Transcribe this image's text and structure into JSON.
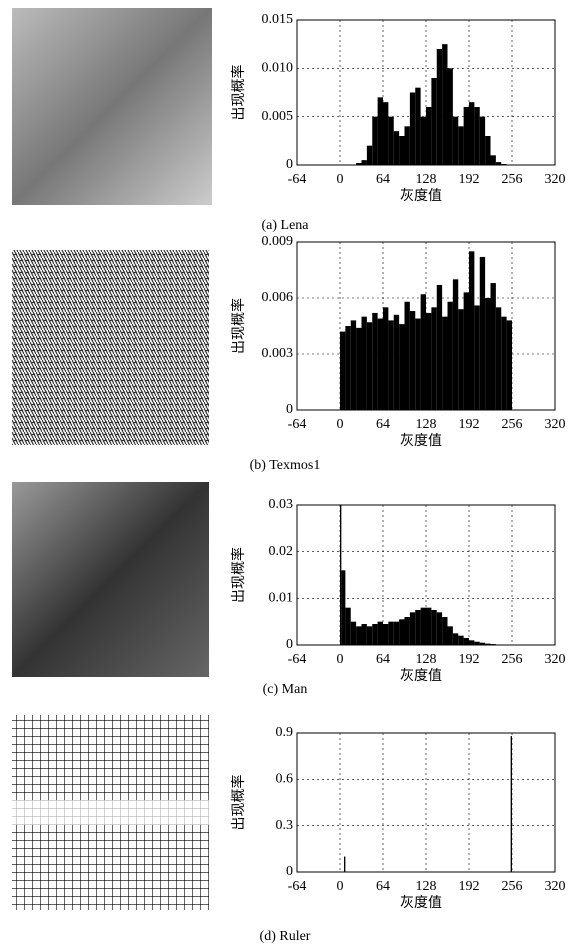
{
  "chart_data": [
    {
      "type": "histogram",
      "title": "(a) Lena",
      "xlabel": "灰度值",
      "ylabel": "出现概率",
      "color": "#000000",
      "grid": true,
      "xlim": [
        -64,
        320
      ],
      "xticks": [
        -64,
        0,
        64,
        128,
        192,
        256,
        320
      ],
      "ylim": [
        0,
        0.015
      ],
      "yticks": [
        0,
        0.005,
        {
          "value": 0.01,
          "label": "0.010"
        },
        0.015
      ],
      "bins": [
        24,
        32,
        40,
        48,
        56,
        64,
        72,
        80,
        88,
        96,
        104,
        112,
        120,
        128,
        136,
        144,
        152,
        160,
        168,
        176,
        184,
        192,
        200,
        208,
        216,
        224,
        232,
        240,
        248
      ],
      "counts": [
        0.0002,
        0.0005,
        0.002,
        0.005,
        0.007,
        0.0065,
        0.005,
        0.0035,
        0.003,
        0.004,
        0.0075,
        0.008,
        0.005,
        0.006,
        0.009,
        0.012,
        0.0125,
        0.01,
        0.005,
        0.004,
        0.006,
        0.0065,
        0.006,
        0.005,
        0.003,
        0.001,
        0.0003,
        0.0001
      ]
    },
    {
      "type": "histogram",
      "title": "(b) Texmos1",
      "xlabel": "灰度值",
      "ylabel": "出现概率",
      "color": "#000000",
      "grid": true,
      "xlim": [
        -64,
        320
      ],
      "xticks": [
        -64,
        0,
        64,
        128,
        192,
        256,
        320
      ],
      "ylim": [
        0,
        0.009
      ],
      "yticks": [
        0,
        0.003,
        0.006,
        0.009
      ],
      "bins": [
        0,
        8,
        16,
        24,
        32,
        40,
        48,
        56,
        64,
        72,
        80,
        88,
        96,
        104,
        112,
        120,
        128,
        136,
        144,
        152,
        160,
        168,
        176,
        184,
        192,
        200,
        208,
        216,
        224,
        232,
        240,
        248,
        256
      ],
      "counts": [
        0.0042,
        0.0045,
        0.0048,
        0.0044,
        0.005,
        0.0047,
        0.0052,
        0.0049,
        0.0055,
        0.0048,
        0.0051,
        0.0046,
        0.0058,
        0.0053,
        0.0049,
        0.0062,
        0.0052,
        0.0055,
        0.0067,
        0.005,
        0.0058,
        0.007,
        0.0054,
        0.0063,
        0.0085,
        0.0056,
        0.0082,
        0.006,
        0.0068,
        0.0055,
        0.005,
        0.0048
      ]
    },
    {
      "type": "histogram",
      "title": "(c) Man",
      "xlabel": "灰度值",
      "ylabel": "出现概率",
      "color": "#000000",
      "grid": true,
      "xlim": [
        -64,
        320
      ],
      "xticks": [
        -64,
        0,
        64,
        128,
        192,
        256,
        320
      ],
      "ylim": [
        0,
        0.03
      ],
      "yticks": [
        0,
        0.01,
        0.02,
        0.03
      ],
      "bins": [
        0,
        2,
        8,
        16,
        24,
        32,
        40,
        48,
        56,
        64,
        72,
        80,
        88,
        96,
        104,
        112,
        120,
        128,
        136,
        144,
        152,
        160,
        168,
        176,
        184,
        192,
        200,
        208,
        216,
        224,
        232,
        240,
        248
      ],
      "counts": [
        0.03,
        0.016,
        0.008,
        0.005,
        0.004,
        0.0045,
        0.004,
        0.0045,
        0.005,
        0.0045,
        0.005,
        0.005,
        0.0055,
        0.006,
        0.007,
        0.0075,
        0.008,
        0.008,
        0.0075,
        0.007,
        0.006,
        0.004,
        0.0025,
        0.002,
        0.0015,
        0.001,
        0.0007,
        0.0005,
        0.0003,
        0.0002,
        0.0001,
        0.0001
      ]
    },
    {
      "type": "histogram",
      "title": "(d) Ruler",
      "xlabel": "灰度值",
      "ylabel": "出现概率",
      "color": "#000000",
      "grid": true,
      "xlim": [
        -64,
        320
      ],
      "xticks": [
        -64,
        0,
        64,
        128,
        192,
        256,
        320
      ],
      "ylim": [
        0,
        0.9
      ],
      "yticks": [
        0,
        0.3,
        0.6,
        0.9
      ],
      "bins": [
        6,
        8,
        254,
        256
      ],
      "counts": [
        0.1,
        0,
        0.88
      ]
    }
  ]
}
